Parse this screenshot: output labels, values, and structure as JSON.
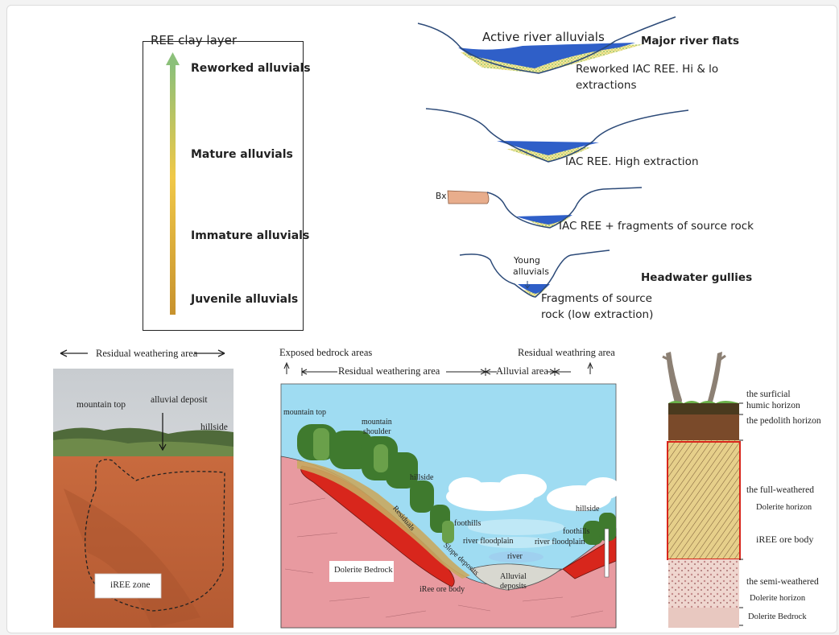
{
  "legend": {
    "title": "REE clay layer",
    "stages": [
      "Reworked alluvials",
      "Mature alluvials",
      "Immature alluvials",
      "Juvenile alluvials"
    ]
  },
  "profiles": {
    "p1": {
      "top_label": "Active river alluvials",
      "right_label": "Major river flats",
      "below_line1": "Reworked IAC REE. Hi & lo",
      "below_line2": "extractions"
    },
    "p2": {
      "label": "IAC REE. High extraction"
    },
    "p3": {
      "bx_label": "Bx",
      "label": "IAC REE + fragments of source rock"
    },
    "p4": {
      "young_line1": "Young",
      "young_line2": "alluvials",
      "right_label": "Headwater gullies",
      "below_line1": "Fragments of source",
      "below_line2": "rock (low extraction)"
    }
  },
  "photo": {
    "header": "Residual weathering area",
    "labels": {
      "mountain_top": "mountain top",
      "alluvial_deposit": "alluvial deposit",
      "hillside": "hillside",
      "zone": "iREE zone"
    }
  },
  "cross_section": {
    "top_left": "Exposed bedrock areas",
    "top_right": "Residual weathring area",
    "span_residual": "Residual weathering area",
    "span_alluvial": "Alluvial area",
    "labels": {
      "mountain_top": "mountain top",
      "mountain_shoulder_1": "mountain",
      "mountain_shoulder_2": "shoulder",
      "hillside_left": "hillside",
      "foothills_left": "foothills",
      "river_floodplain_left": "river floodplain",
      "river": "river",
      "river_floodplain_right": "river floodplain",
      "foothills_right": "foothills",
      "hillside_right": "hillside",
      "residuals": "Residuals",
      "slope_deposits": "Slope deposits",
      "dolerite_bedrock": "Dolerite Bedrock",
      "iree_ore_body": "iRee ore body",
      "alluvial_deposits_1": "Alluvial",
      "alluvial_deposits_2": "deposits"
    }
  },
  "soil_profile": {
    "labels": {
      "surficial_1": "the surficial",
      "surficial_2": "humic horizon",
      "pedolith": "the pedolith horizon",
      "full_weathered": "the full-weathered",
      "dolerite_horizon_1": "Dolerite horizon",
      "iree_ore_body": "iREE  ore body",
      "semi_weathered": "the semi-weathered",
      "dolerite_horizon_2": "Dolerite horizon",
      "dolerite_bedrock": "Dolerite Bedrock"
    }
  },
  "colors": {
    "river_blue": "#2f5fc8",
    "deposit_yellow": "#e8e08a",
    "bedrock_pink": "#e89aa0",
    "ore_red": "#d8261c",
    "sky_blue": "#9fdcf2",
    "bx_tan": "#e8ad8c"
  }
}
